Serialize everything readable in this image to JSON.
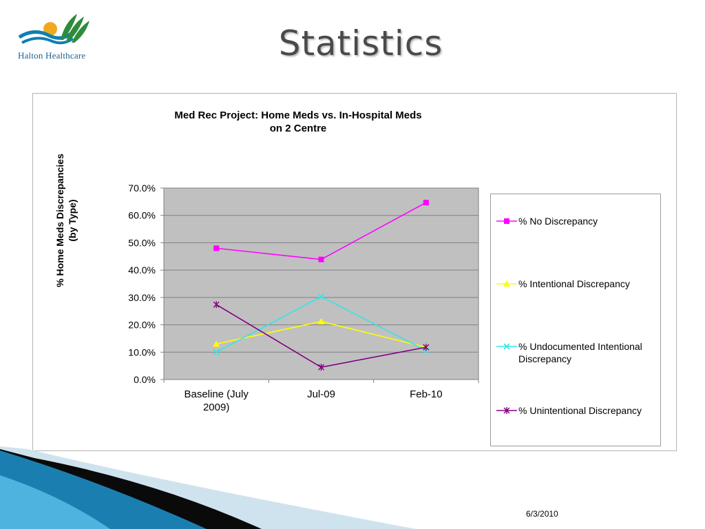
{
  "logo": {
    "text": "Halton Healthcare",
    "colors": {
      "sun": "#f2a81d",
      "waves": "#0e7fb3",
      "leaves": "#2e8b3a"
    }
  },
  "slide": {
    "title": "Statistics",
    "date": "6/3/2010"
  },
  "chart_data": {
    "type": "line",
    "title_lines": [
      "Med Rec Project: Home Meds vs. In-Hospital Meds",
      "on 2 Centre"
    ],
    "ylabel_lines": [
      "% Home Meds Discrepancies",
      "(by Type)"
    ],
    "xlabel": "",
    "categories": [
      "Baseline (July 2009)",
      "Jul-09",
      "Feb-10"
    ],
    "category_label_lines": [
      [
        "Baseline (July",
        "2009)"
      ],
      [
        "Jul-09"
      ],
      [
        "Feb-10"
      ]
    ],
    "yticks": [
      "0.0%",
      "10.0%",
      "20.0%",
      "30.0%",
      "40.0%",
      "50.0%",
      "60.0%",
      "70.0%"
    ],
    "ylim": [
      0,
      70
    ],
    "grid": true,
    "plot_background": "#c0c0c0",
    "legend_position": "right",
    "series": [
      {
        "name": "% No Discrepancy",
        "name_lines": [
          "% No Discrepancy"
        ],
        "values": [
          48.0,
          43.9,
          64.7
        ],
        "color": "#ff00ff",
        "marker": "square"
      },
      {
        "name": "% Intentional Discrepancy",
        "name_lines": [
          "% Intentional Discrepancy"
        ],
        "values": [
          13.0,
          21.2,
          11.8
        ],
        "color": "#ffff00",
        "marker": "triangle"
      },
      {
        "name": "% Undocumented Intentional Discrepancy",
        "name_lines": [
          "% Undocumented Intentional",
          "Discrepancy"
        ],
        "values": [
          10.0,
          30.3,
          10.6
        ],
        "color": "#33e5e5",
        "marker": "x"
      },
      {
        "name": "% Unintentional Discrepancy",
        "name_lines": [
          "% Unintentional Discrepancy"
        ],
        "values": [
          27.4,
          4.5,
          11.8
        ],
        "color": "#800080",
        "marker": "star"
      }
    ]
  }
}
